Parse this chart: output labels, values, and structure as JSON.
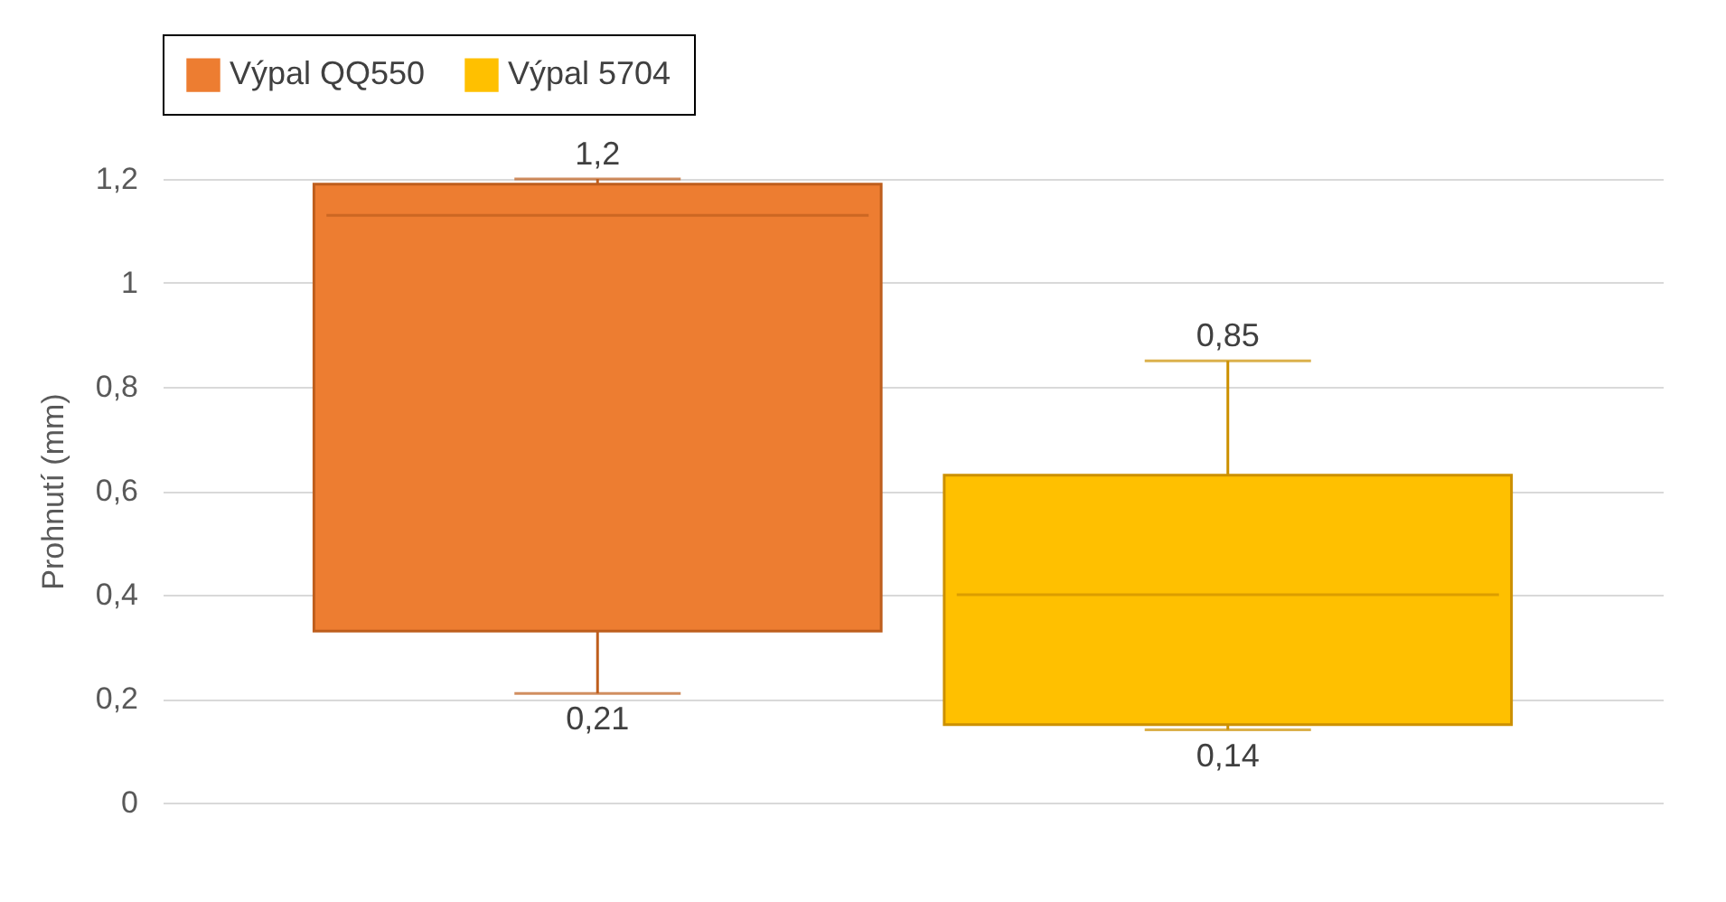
{
  "chart_data": {
    "type": "box",
    "ylabel": "Prohnutí (mm)",
    "categories": [
      null
    ],
    "series": [
      {
        "name": "Výpal QQ550",
        "color": "#ed7d31",
        "boxes": [
          {
            "low": 0.21,
            "q1": 0.33,
            "median": 1.13,
            "q3": 1.19,
            "high": 1.2
          }
        ]
      },
      {
        "name": "Výpal 5704",
        "color": "#ffc000",
        "boxes": [
          {
            "low": 0.14,
            "q1": 0.15,
            "median": 0.4,
            "q3": 0.63,
            "high": 0.85
          }
        ]
      }
    ],
    "ylim": [
      0,
      1.2
    ],
    "yticks": [
      0,
      {
        "value": 0.2,
        "label": "0,2"
      },
      {
        "value": 0.4,
        "label": "0,4"
      },
      {
        "value": 0.6,
        "label": "0,6"
      },
      {
        "value": 0.8,
        "label": "0,8"
      },
      1,
      {
        "value": 1.2,
        "label": "1,2"
      }
    ],
    "grid": "y",
    "legend": "top",
    "tick_labels": "y",
    "annotations": [
      {
        "text": "1,2",
        "y": 1.2
      },
      {
        "text": "0,21",
        "y": 0.21
      },
      {
        "text": "0,85",
        "y": 0.85
      },
      {
        "text": "0,14",
        "y": 0.14
      }
    ]
  }
}
